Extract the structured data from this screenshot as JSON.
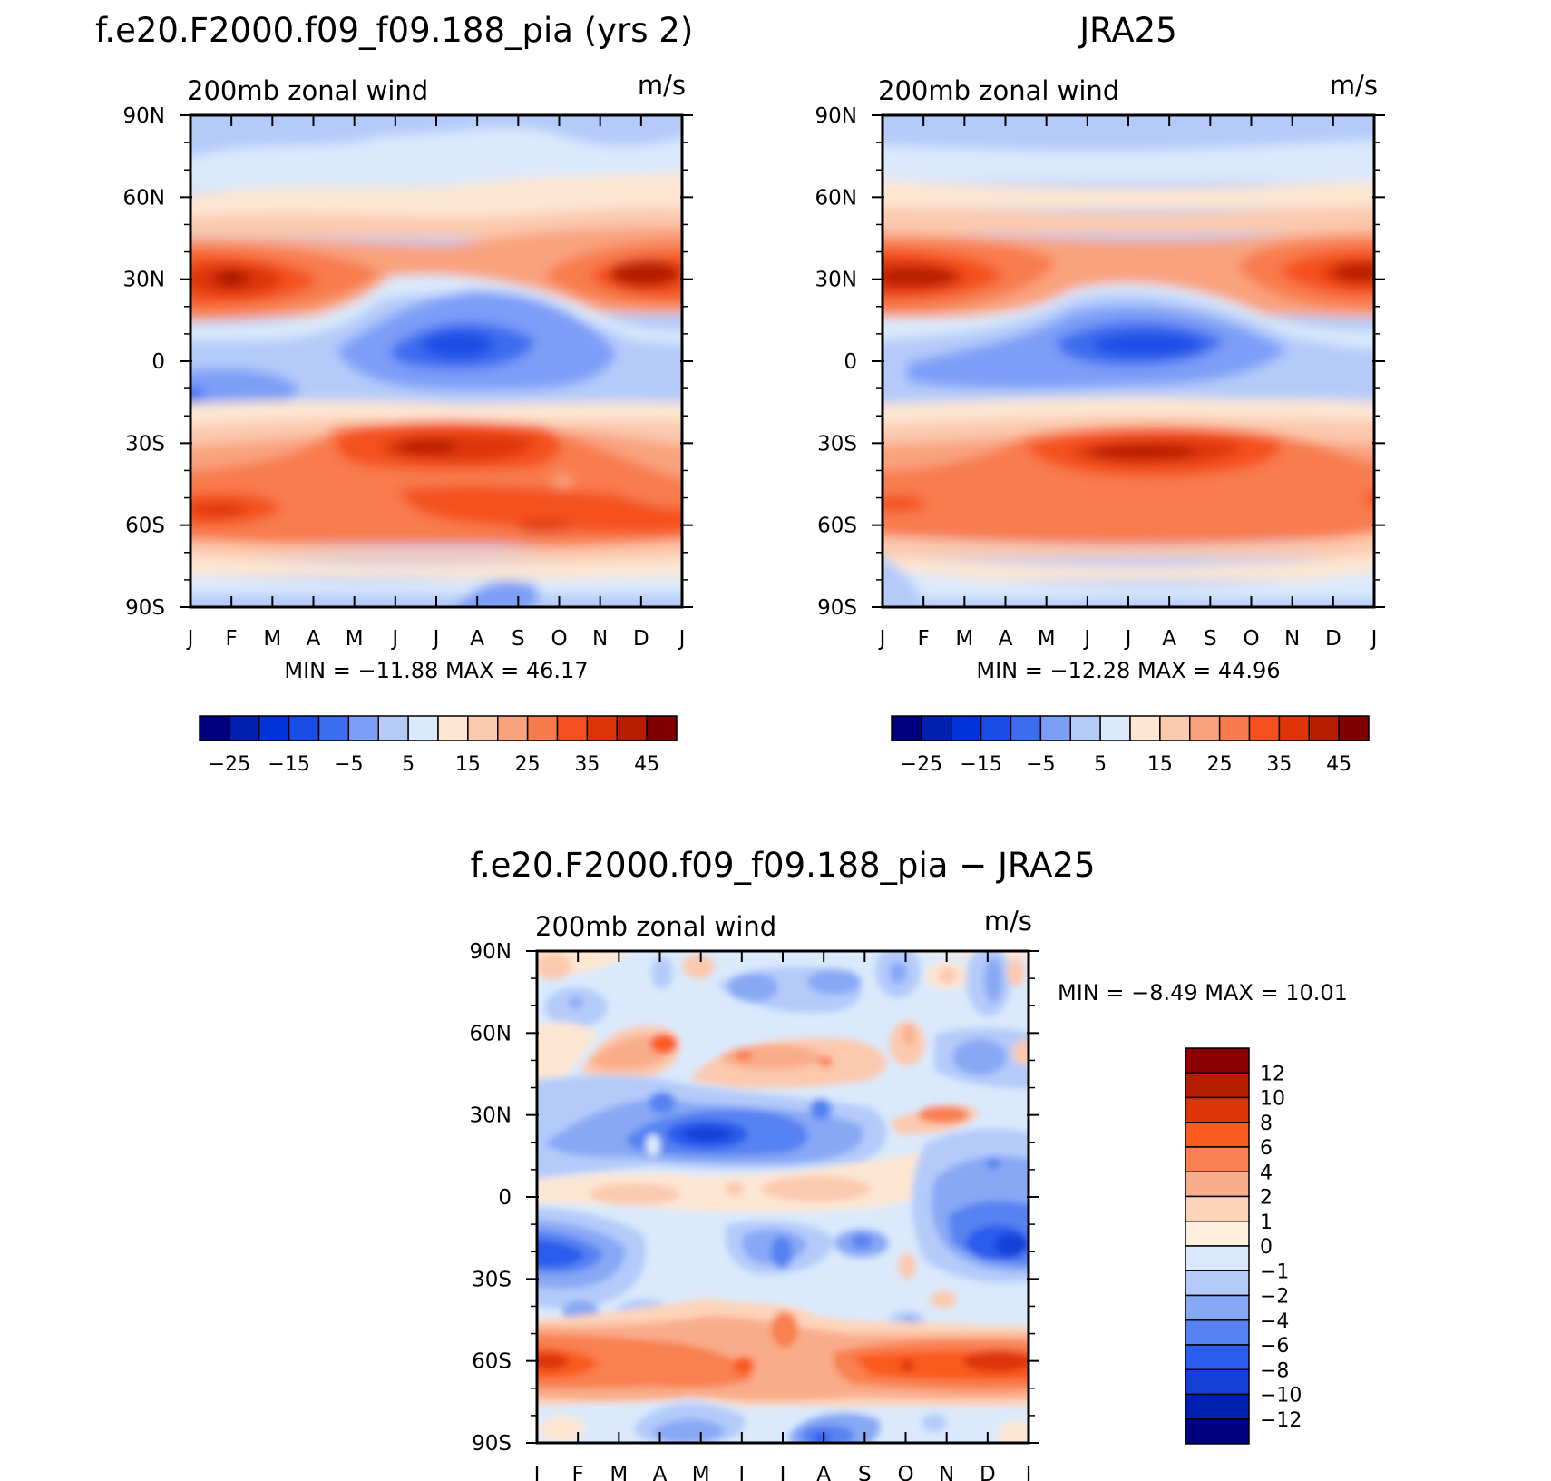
{
  "chart_data": [
    {
      "type": "heatmap",
      "title": "f.e20.F2000.f09_f09.188_pia (yrs 2)",
      "left_label": "200mb zonal wind",
      "right_label": "m/s",
      "x_ticks": [
        "J",
        "F",
        "M",
        "A",
        "M",
        "J",
        "J",
        "A",
        "S",
        "O",
        "N",
        "D",
        "J"
      ],
      "y_ticks": [
        "90N",
        "60N",
        "30N",
        "0",
        "30S",
        "60S",
        "90S"
      ],
      "y_range": [
        -90,
        90
      ],
      "stats": "MIN =  −11.88  MAX =    46.17",
      "min": -11.88,
      "max": 46.17,
      "colorbar": {
        "orientation": "horizontal",
        "labels": [
          "−25",
          "−15",
          "−5",
          "5",
          "15",
          "25",
          "35",
          "45"
        ],
        "colors": [
          "#00007f",
          "#0020b0",
          "#0033d9",
          "#1a4de6",
          "#3c6cf0",
          "#7b9ef7",
          "#b4cbfa",
          "#daeafc",
          "#fde6d2",
          "#fbc9ae",
          "#f9a27e",
          "#f87b4e",
          "#f4511e",
          "#de3508",
          "#b51f00",
          "#800000"
        ]
      },
      "features": {
        "nh_jet": {
          "lat": 31,
          "peak_months": [
            "F",
            "D"
          ],
          "max": 46.17
        },
        "sh_jet": {
          "lat": -30,
          "peak_months": [
            "J",
            "A"
          ],
          "value": 40
        },
        "tropical_easterlies": {
          "lat": 6,
          "peak_month": "J",
          "min": -11.88
        }
      }
    },
    {
      "type": "heatmap",
      "title": "JRA25",
      "left_label": "200mb zonal wind",
      "right_label": "m/s",
      "x_ticks": [
        "J",
        "F",
        "M",
        "A",
        "M",
        "J",
        "J",
        "A",
        "S",
        "O",
        "N",
        "D",
        "J"
      ],
      "y_ticks": [
        "90N",
        "60N",
        "30N",
        "0",
        "30S",
        "60S",
        "90S"
      ],
      "y_range": [
        -90,
        90
      ],
      "stats": "MIN =  −12.28  MAX =    44.96",
      "min": -12.28,
      "max": 44.96,
      "colorbar": {
        "orientation": "horizontal",
        "labels": [
          "−25",
          "−15",
          "−5",
          "5",
          "15",
          "25",
          "35",
          "45"
        ],
        "colors": [
          "#00007f",
          "#0020b0",
          "#0033d9",
          "#1a4de6",
          "#3c6cf0",
          "#7b9ef7",
          "#b4cbfa",
          "#daeafc",
          "#fde6d2",
          "#fbc9ae",
          "#f9a27e",
          "#f87b4e",
          "#f4511e",
          "#de3508",
          "#b51f00",
          "#800000"
        ]
      },
      "features": {
        "nh_jet": {
          "lat": 30,
          "peak_months": [
            "J",
            "D"
          ],
          "max": 44.96
        },
        "sh_jet": {
          "lat": -29,
          "peak_months": [
            "J",
            "A"
          ],
          "value": 42
        },
        "tropical_easterlies": {
          "lat": 5,
          "peak_month": "J",
          "min": -12.28
        }
      }
    },
    {
      "type": "heatmap",
      "title": "f.e20.F2000.f09_f09.188_pia − JRA25",
      "left_label": "200mb zonal wind",
      "right_label": "m/s",
      "x_ticks": [
        "J",
        "F",
        "M",
        "A",
        "M",
        "J",
        "J",
        "A",
        "S",
        "O",
        "N",
        "D",
        "J"
      ],
      "y_ticks": [
        "90N",
        "60N",
        "30N",
        "0",
        "30S",
        "60S",
        "90S"
      ],
      "y_range": [
        -90,
        90
      ],
      "stats": "MIN =    −8.49  MAX =    10.01",
      "min": -8.49,
      "max": 10.01,
      "colorbar": {
        "orientation": "vertical",
        "labels": [
          "12",
          "10",
          "8",
          "6",
          "4",
          "2",
          "1",
          "0",
          "−1",
          "−2",
          "−4",
          "−6",
          "−8",
          "−10",
          "−12"
        ],
        "colors": [
          "#8b0000",
          "#b51f00",
          "#de3508",
          "#fa5a1e",
          "#f98050",
          "#f9ac8a",
          "#fdd4ba",
          "#fdeedd",
          "#daeafc",
          "#b4cbfa",
          "#87a8f5",
          "#5782f2",
          "#2a5cee",
          "#1540d6",
          "#0020b0",
          "#000080"
        ]
      }
    }
  ]
}
